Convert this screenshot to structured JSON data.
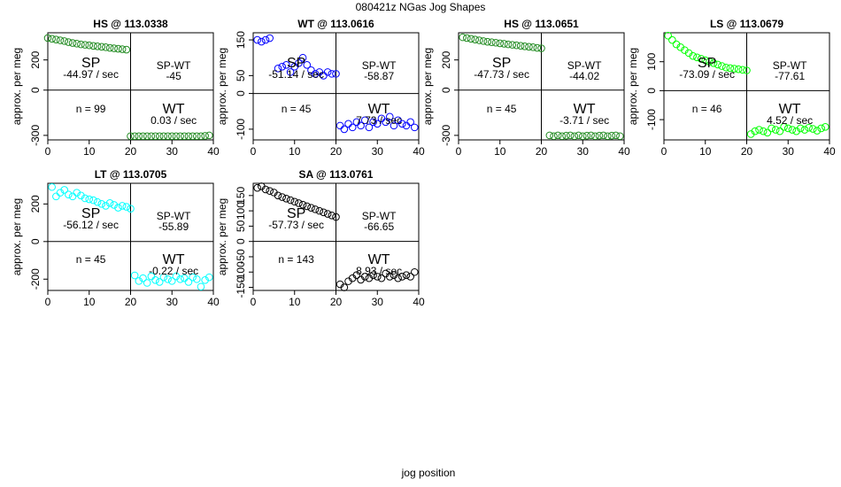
{
  "figure": {
    "title": "080421z   NGas Jog Shapes",
    "xlabel": "jog position"
  },
  "chart_data": [
    {
      "type": "scatter",
      "title": "HS @ 113.0338",
      "ylabel": "approx. per meg",
      "color": "#228B22",
      "xlim": [
        0,
        40
      ],
      "ylim": [
        -330,
        380
      ],
      "xticks": [
        0,
        10,
        20,
        30,
        40
      ],
      "yticks": [
        -300,
        0,
        200
      ],
      "quadrants": {
        "sp_label": "SP",
        "sp_slope": "-44.97 / sec",
        "spwt_label": "SP-WT",
        "spwt_value": "-45",
        "n_text": "n = 99",
        "wt_label": "WT",
        "wt_slope": "0.03 / sec"
      },
      "x": [
        0,
        1,
        2,
        3,
        4,
        5,
        6,
        7,
        8,
        9,
        10,
        11,
        12,
        13,
        14,
        15,
        16,
        17,
        18,
        19,
        20,
        21,
        22,
        23,
        24,
        25,
        26,
        27,
        28,
        29,
        30,
        31,
        32,
        33,
        34,
        35,
        36,
        37,
        38,
        39
      ],
      "y": [
        345,
        340,
        335,
        330,
        325,
        318,
        312,
        308,
        303,
        300,
        297,
        293,
        290,
        287,
        284,
        280,
        277,
        274,
        271,
        268,
        -305,
        -305,
        -305,
        -305,
        -305,
        -305,
        -305,
        -305,
        -305,
        -305,
        -305,
        -305,
        -305,
        -305,
        -305,
        -305,
        -305,
        -305,
        -303,
        -300
      ]
    },
    {
      "type": "scatter",
      "title": "WT @ 113.0616",
      "ylabel": "approx. per meg",
      "color": "#0000FF",
      "xlim": [
        0,
        40
      ],
      "ylim": [
        -130,
        170
      ],
      "xticks": [
        0,
        10,
        20,
        30,
        40
      ],
      "yticks": [
        -100,
        0,
        50,
        150
      ],
      "quadrants": {
        "sp_label": "SP",
        "sp_slope": "-51.14 / sec",
        "spwt_label": "SP-WT",
        "spwt_value": "-58.87",
        "n_text": "n = 45",
        "wt_label": "WT",
        "wt_slope": "7.73 / sec"
      },
      "x": [
        1,
        2,
        3,
        4,
        6,
        7,
        8,
        9,
        10,
        11,
        12,
        13,
        14,
        15,
        16,
        17,
        18,
        19,
        20,
        21,
        22,
        23,
        24,
        25,
        26,
        27,
        28,
        29,
        30,
        31,
        32,
        33,
        34,
        35,
        36,
        37,
        38,
        39
      ],
      "y": [
        150,
        145,
        150,
        155,
        70,
        75,
        80,
        60,
        75,
        85,
        100,
        80,
        65,
        55,
        60,
        50,
        60,
        55,
        55,
        -90,
        -100,
        -85,
        -95,
        -80,
        -90,
        -75,
        -95,
        -80,
        -85,
        -70,
        -80,
        -65,
        -90,
        -75,
        -85,
        -90,
        -80,
        -95
      ]
    },
    {
      "type": "scatter",
      "title": "HS @ 113.0651",
      "ylabel": "approx. per meg",
      "color": "#228B22",
      "xlim": [
        0,
        40
      ],
      "ylim": [
        -330,
        380
      ],
      "xticks": [
        0,
        10,
        20,
        30,
        40
      ],
      "yticks": [
        -300,
        0,
        200
      ],
      "quadrants": {
        "sp_label": "SP",
        "sp_slope": "-47.73 / sec",
        "spwt_label": "SP-WT",
        "spwt_value": "-44.02",
        "n_text": "n = 45",
        "wt_label": "WT",
        "wt_slope": "-3.71 / sec"
      },
      "x": [
        1,
        2,
        3,
        4,
        5,
        6,
        7,
        8,
        9,
        10,
        11,
        12,
        13,
        14,
        15,
        16,
        17,
        18,
        19,
        20,
        22,
        23,
        24,
        25,
        26,
        27,
        28,
        29,
        30,
        31,
        32,
        33,
        34,
        35,
        36,
        37,
        38,
        39
      ],
      "y": [
        350,
        345,
        340,
        335,
        330,
        325,
        320,
        317,
        314,
        310,
        307,
        303,
        300,
        297,
        294,
        290,
        287,
        284,
        280,
        277,
        -300,
        -305,
        -300,
        -305,
        -302,
        -300,
        -305,
        -300,
        -305,
        -302,
        -300,
        -305,
        -302,
        -300,
        -305,
        -302,
        -300,
        -305
      ]
    },
    {
      "type": "scatter",
      "title": "LS @ 113.0679",
      "ylabel": "approx. per meg",
      "color": "#00FF00",
      "xlim": [
        0,
        40
      ],
      "ylim": [
        -170,
        200
      ],
      "xticks": [
        0,
        10,
        20,
        30,
        40
      ],
      "yticks": [
        -100,
        0,
        100
      ],
      "quadrants": {
        "sp_label": "SP",
        "sp_slope": "-73.09 / sec",
        "spwt_label": "SP-WT",
        "spwt_value": "-77.61",
        "n_text": "n = 46",
        "wt_label": "WT",
        "wt_slope": "4.52 / sec"
      },
      "x": [
        1,
        2,
        3,
        4,
        5,
        6,
        7,
        8,
        9,
        10,
        11,
        12,
        13,
        14,
        15,
        16,
        17,
        18,
        19,
        20,
        21,
        22,
        23,
        24,
        25,
        26,
        27,
        28,
        29,
        30,
        31,
        32,
        33,
        34,
        35,
        36,
        37,
        38,
        39
      ],
      "y": [
        190,
        175,
        160,
        150,
        140,
        130,
        120,
        115,
        110,
        105,
        100,
        95,
        90,
        85,
        80,
        78,
        76,
        74,
        72,
        70,
        -150,
        -140,
        -135,
        -140,
        -145,
        -130,
        -135,
        -140,
        -125,
        -130,
        -135,
        -140,
        -130,
        -135,
        -128,
        -132,
        -138,
        -130,
        -125
      ]
    },
    {
      "type": "scatter",
      "title": "LT @ 113.0705",
      "ylabel": "approx. per meg",
      "color": "#00FFFF",
      "xlim": [
        0,
        40
      ],
      "ylim": [
        -260,
        310
      ],
      "xticks": [
        0,
        10,
        20,
        30,
        40
      ],
      "yticks": [
        -200,
        0,
        200
      ],
      "quadrants": {
        "sp_label": "SP",
        "sp_slope": "-56.12 / sec",
        "spwt_label": "SP-WT",
        "spwt_value": "-55.89",
        "n_text": "n = 45",
        "wt_label": "WT",
        "wt_slope": "-0.22 / sec"
      },
      "x": [
        1,
        2,
        3,
        4,
        5,
        6,
        7,
        8,
        9,
        10,
        11,
        12,
        13,
        14,
        15,
        16,
        17,
        18,
        19,
        20,
        21,
        22,
        23,
        24,
        25,
        26,
        27,
        28,
        29,
        30,
        31,
        32,
        33,
        34,
        35,
        36,
        37,
        38,
        39
      ],
      "y": [
        290,
        240,
        260,
        275,
        250,
        240,
        260,
        245,
        230,
        225,
        220,
        210,
        200,
        190,
        205,
        195,
        180,
        190,
        185,
        175,
        -180,
        -210,
        -195,
        -220,
        -185,
        -205,
        -215,
        -190,
        -200,
        -210,
        -185,
        -200,
        -195,
        -215,
        -190,
        -200,
        -240,
        -205,
        -190
      ]
    },
    {
      "type": "scatter",
      "title": "SA @ 113.0761",
      "ylabel": "approx. per meg",
      "color": "#000000",
      "xlim": [
        0,
        40
      ],
      "ylim": [
        -160,
        190
      ],
      "xticks": [
        0,
        10,
        20,
        30,
        40
      ],
      "yticks": [
        -150,
        -100,
        -50,
        0,
        50,
        100,
        150
      ],
      "quadrants": {
        "sp_label": "SP",
        "sp_slope": "-57.73 / sec",
        "spwt_label": "SP-WT",
        "spwt_value": "-66.65",
        "n_text": "n = 143",
        "wt_label": "WT",
        "wt_slope": "8.93 / sec"
      },
      "x": [
        1,
        2,
        3,
        4,
        5,
        6,
        7,
        8,
        9,
        10,
        11,
        12,
        13,
        14,
        15,
        16,
        17,
        18,
        19,
        20,
        21,
        22,
        23,
        24,
        25,
        26,
        27,
        28,
        29,
        30,
        31,
        32,
        33,
        34,
        35,
        36,
        37,
        38,
        39
      ],
      "y": [
        175,
        180,
        170,
        165,
        160,
        150,
        145,
        140,
        135,
        130,
        125,
        120,
        115,
        110,
        105,
        100,
        95,
        90,
        85,
        80,
        -140,
        -150,
        -130,
        -120,
        -110,
        -125,
        -115,
        -120,
        -110,
        -115,
        -120,
        -105,
        -115,
        -110,
        -120,
        -115,
        -110,
        -115,
        -100
      ]
    }
  ]
}
